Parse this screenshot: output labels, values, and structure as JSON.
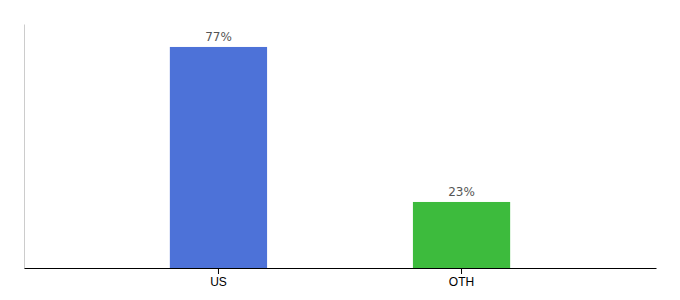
{
  "chart_data": {
    "type": "bar",
    "categories": [
      "US",
      "OTH"
    ],
    "values": [
      77,
      23
    ],
    "colors": [
      "#4d72d8",
      "#3dbb3d"
    ],
    "value_labels": [
      "77%",
      "23%"
    ],
    "data_labels": true,
    "ylim": [
      0,
      85
    ],
    "tick_labels": "x",
    "grid": false
  }
}
